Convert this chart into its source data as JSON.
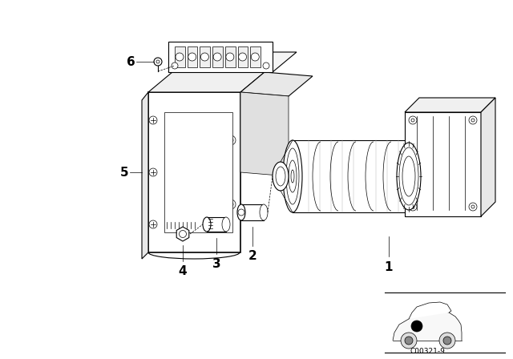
{
  "bg_color": "#ffffff",
  "line_color": "#000000",
  "diagram_code": "C00321-9",
  "lw_thin": 0.5,
  "lw_med": 0.8,
  "lw_thick": 1.2
}
